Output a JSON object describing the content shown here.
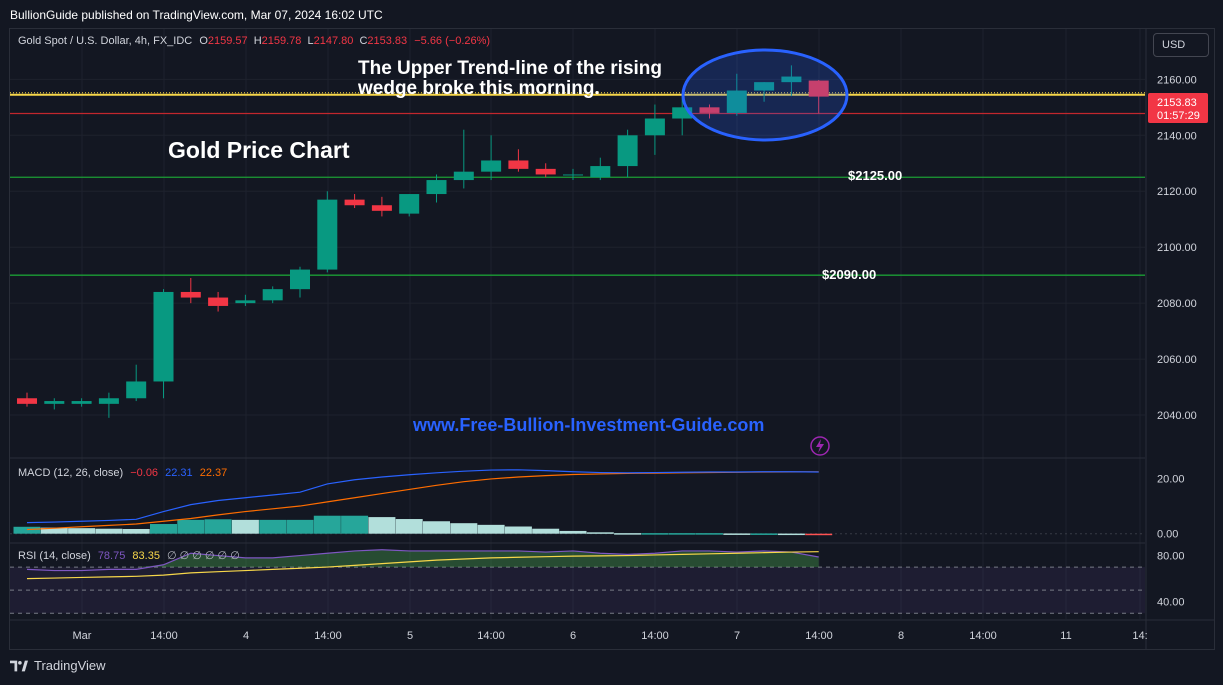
{
  "publisher_line": "BullionGuide published on TradingView.com, Mar 07, 2024 16:02 UTC",
  "symbol_header": {
    "symbol": "Gold Spot / U.S. Dollar, 4h, FX_IDC",
    "o_label": "O",
    "o": "2159.57",
    "h_label": "H",
    "h": "2159.78",
    "l_label": "L",
    "l": "2147.80",
    "c_label": "C",
    "c": "2153.83",
    "change": "−5.66 (−0.26%)"
  },
  "currency_button": "USD",
  "annotations": {
    "wedge_line1": "The Upper Trend-line of the rising",
    "wedge_line2": "wedge broke this morning.",
    "chart_title": "Gold Price Chart",
    "level_2125": "$2125.00",
    "level_2090": "$2090.00",
    "website": "www.Free-Bullion-Investment-Guide.com"
  },
  "price_tag": {
    "price": "2153.83",
    "countdown": "01:57:29"
  },
  "macd_legend": {
    "label": "MACD (12, 26, close)",
    "hist": "−0.06",
    "macd": "22.31",
    "signal": "22.37"
  },
  "rsi_legend": {
    "label": "RSI (14, close)",
    "rsi": "78.75",
    "ma": "83.35",
    "extra": "∅ ∅ ∅ ∅ ∅ ∅"
  },
  "footer_brand": "TradingView",
  "colors": {
    "up": "#089981",
    "down": "#f23645",
    "yellow": "#f7d74a",
    "green_level": "#1b9e35",
    "red_level": "#c2272d",
    "macd": "#2962ff",
    "signal": "#ff6d00",
    "rsi": "#7e57c2",
    "rsi_ma": "#f7d74a",
    "annotation_link": "#2962ff"
  },
  "chart_data": [
    {
      "type": "candlestick",
      "title": "Gold Price Chart",
      "x_tick_labels": [
        "Mar",
        "14:00",
        "4",
        "14:00",
        "5",
        "14:00",
        "6",
        "14:00",
        "7",
        "14:00",
        "8",
        "14:00",
        "11",
        "14:"
      ],
      "y_ticks": [
        2040,
        2060,
        2080,
        2100,
        2120,
        2140,
        2160
      ],
      "y_tick_labels": [
        "2040.00",
        "2060.00",
        "2080.00",
        "2100.00",
        "2120.00",
        "2140.00",
        "2160.00"
      ],
      "ylim": [
        2025,
        2178
      ],
      "horizontal_levels": [
        {
          "value": 2125.0,
          "color": "#1b9e35"
        },
        {
          "value": 2090.0,
          "color": "#1b9e35"
        },
        {
          "value": 2154.5,
          "color": "#f7d74a"
        },
        {
          "value": 2147.8,
          "color": "#c2272d"
        }
      ],
      "candles": [
        {
          "o": 2046,
          "h": 2048,
          "l": 2043,
          "c": 2044
        },
        {
          "o": 2044,
          "h": 2046,
          "l": 2042,
          "c": 2045
        },
        {
          "o": 2044,
          "h": 2046,
          "l": 2043,
          "c": 2045
        },
        {
          "o": 2044,
          "h": 2048,
          "l": 2039,
          "c": 2046
        },
        {
          "o": 2046,
          "h": 2058,
          "l": 2045,
          "c": 2052
        },
        {
          "o": 2052,
          "h": 2085,
          "l": 2046,
          "c": 2084
        },
        {
          "o": 2084,
          "h": 2089,
          "l": 2080,
          "c": 2082
        },
        {
          "o": 2082,
          "h": 2084,
          "l": 2077,
          "c": 2079
        },
        {
          "o": 2080,
          "h": 2083,
          "l": 2079,
          "c": 2081
        },
        {
          "o": 2081,
          "h": 2086,
          "l": 2080,
          "c": 2085
        },
        {
          "o": 2085,
          "h": 2093,
          "l": 2082,
          "c": 2092
        },
        {
          "o": 2092,
          "h": 2120,
          "l": 2091,
          "c": 2117
        },
        {
          "o": 2117,
          "h": 2119,
          "l": 2114,
          "c": 2115
        },
        {
          "o": 2115,
          "h": 2118,
          "l": 2111,
          "c": 2113
        },
        {
          "o": 2112,
          "h": 2119,
          "l": 2111,
          "c": 2119
        },
        {
          "o": 2119,
          "h": 2126,
          "l": 2116,
          "c": 2124
        },
        {
          "o": 2124,
          "h": 2142,
          "l": 2121,
          "c": 2127
        },
        {
          "o": 2127,
          "h": 2140,
          "l": 2124,
          "c": 2131
        },
        {
          "o": 2131,
          "h": 2135,
          "l": 2127,
          "c": 2128
        },
        {
          "o": 2128,
          "h": 2130,
          "l": 2125,
          "c": 2126
        },
        {
          "o": 2126,
          "h": 2128,
          "l": 2124,
          "c": 2126
        },
        {
          "o": 2125,
          "h": 2132,
          "l": 2124,
          "c": 2129
        },
        {
          "o": 2129,
          "h": 2142,
          "l": 2125,
          "c": 2140
        },
        {
          "o": 2140,
          "h": 2151,
          "l": 2133,
          "c": 2146
        },
        {
          "o": 2146,
          "h": 2154,
          "l": 2140,
          "c": 2150
        },
        {
          "o": 2150,
          "h": 2151,
          "l": 2146,
          "c": 2148
        },
        {
          "o": 2148,
          "h": 2162,
          "l": 2147,
          "c": 2156
        },
        {
          "o": 2156,
          "h": 2159,
          "l": 2152,
          "c": 2159
        },
        {
          "o": 2159,
          "h": 2165,
          "l": 2154,
          "c": 2161
        },
        {
          "o": 2159.57,
          "h": 2159.78,
          "l": 2147.8,
          "c": 2153.83
        }
      ]
    },
    {
      "type": "line",
      "title": "MACD (12, 26, close)",
      "y_ticks": [
        0,
        20
      ],
      "y_tick_labels": [
        "0.00",
        "20.00"
      ],
      "ylim": [
        -3,
        27
      ],
      "series": [
        {
          "name": "MACD",
          "color": "#2962ff",
          "values": [
            4,
            4.2,
            4.5,
            4.8,
            5.2,
            8,
            10.5,
            12,
            13,
            14,
            15,
            18,
            19.5,
            20.5,
            21.3,
            22,
            22.6,
            23,
            23.1,
            22.8,
            22.4,
            22.1,
            22.0,
            22.1,
            22.2,
            22.3,
            22.3,
            22.4,
            22.4,
            22.31
          ]
        },
        {
          "name": "Signal",
          "color": "#ff6d00",
          "values": [
            1.5,
            2,
            2.5,
            3,
            3.5,
            4.5,
            5.5,
            6.8,
            8,
            9,
            10,
            11.5,
            13,
            14.5,
            16,
            17.5,
            18.8,
            19.8,
            20.5,
            21,
            21.4,
            21.6,
            21.8,
            21.9,
            22.0,
            22.1,
            22.2,
            22.3,
            22.35,
            22.37
          ]
        },
        {
          "name": "Histogram",
          "type": "bar",
          "values": [
            2.5,
            2.2,
            2.0,
            1.8,
            1.7,
            3.5,
            5.0,
            5.2,
            5.0,
            5.0,
            5.0,
            6.5,
            6.5,
            6.0,
            5.3,
            4.5,
            3.8,
            3.2,
            2.6,
            1.8,
            1.0,
            0.5,
            0.2,
            0.2,
            0.2,
            0.2,
            0.1,
            0.1,
            0.05,
            -0.06
          ]
        }
      ]
    },
    {
      "type": "line",
      "title": "RSI (14, close)",
      "y_ticks": [
        40,
        80
      ],
      "y_tick_labels": [
        "40.00",
        "80.00"
      ],
      "bands": [
        30,
        50,
        70
      ],
      "ylim": [
        25,
        90
      ],
      "series": [
        {
          "name": "RSI",
          "color": "#7e57c2",
          "values": [
            68,
            67,
            67,
            68,
            68,
            72,
            82,
            80,
            78,
            78,
            80,
            82,
            84,
            85,
            84,
            84,
            84,
            84,
            84,
            83,
            84,
            82,
            81,
            82,
            84,
            84,
            83,
            84,
            83,
            78.75
          ]
        },
        {
          "name": "RSI MA",
          "color": "#f7d74a",
          "values": [
            60,
            60.5,
            61,
            61.5,
            62,
            63,
            65,
            66,
            67,
            68,
            69,
            70,
            71.5,
            73,
            74.5,
            76,
            77,
            78,
            78.5,
            79,
            79.5,
            79.7,
            80,
            80.5,
            81,
            81.5,
            82,
            82.5,
            83,
            83.35
          ]
        }
      ]
    }
  ]
}
